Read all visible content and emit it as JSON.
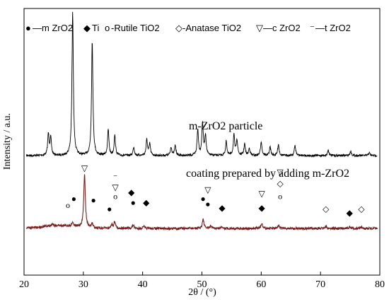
{
  "chart_data": {
    "type": "line",
    "xlabel": "2θ / (°)",
    "ylabel": "Intensity / a.u.",
    "xlim": [
      20,
      80
    ],
    "x_ticks": [
      20,
      30,
      40,
      50,
      60,
      70,
      80
    ],
    "grid": false,
    "legend": {
      "placement": "top",
      "entries": [
        {
          "marker": "●",
          "text": "—m ZrO2"
        },
        {
          "marker": "◆",
          "text": "Ti"
        },
        {
          "marker": "o",
          "text": "-Rutile TiO2"
        },
        {
          "marker": "◇",
          "text": "-Anatase TiO2"
        },
        {
          "marker": "▽",
          "text": "—c ZrO2"
        },
        {
          "marker": "⁻",
          "text": "—t ZrO2"
        }
      ]
    },
    "series": [
      {
        "name": "m-ZrO2 particle",
        "color": "#000000",
        "baseline": 0.0,
        "peaks": [
          {
            "x": 24.1,
            "y": 15
          },
          {
            "x": 24.5,
            "y": 12
          },
          {
            "x": 28.2,
            "y": 100
          },
          {
            "x": 31.5,
            "y": 80
          },
          {
            "x": 34.2,
            "y": 18
          },
          {
            "x": 35.3,
            "y": 14
          },
          {
            "x": 38.5,
            "y": 6
          },
          {
            "x": 40.7,
            "y": 11
          },
          {
            "x": 41.2,
            "y": 8
          },
          {
            "x": 44.8,
            "y": 6
          },
          {
            "x": 45.5,
            "y": 7
          },
          {
            "x": 49.3,
            "y": 18
          },
          {
            "x": 50.1,
            "y": 23
          },
          {
            "x": 50.6,
            "y": 14
          },
          {
            "x": 54.1,
            "y": 10
          },
          {
            "x": 55.4,
            "y": 14
          },
          {
            "x": 55.9,
            "y": 11
          },
          {
            "x": 57.2,
            "y": 8
          },
          {
            "x": 58.0,
            "y": 5
          },
          {
            "x": 60.0,
            "y": 10
          },
          {
            "x": 61.5,
            "y": 6
          },
          {
            "x": 62.9,
            "y": 8
          },
          {
            "x": 65.7,
            "y": 7
          },
          {
            "x": 71.3,
            "y": 4
          },
          {
            "x": 75.1,
            "y": 3
          },
          {
            "x": 78.2,
            "y": 2
          }
        ]
      },
      {
        "name": "coating prepared by adding m-ZrO2",
        "color": "#7a1f1f",
        "baseline": 0.0,
        "peaks": [
          {
            "x": 24.8,
            "y": 1.5
          },
          {
            "x": 28.2,
            "y": 3
          },
          {
            "x": 30.2,
            "y": 40
          },
          {
            "x": 31.5,
            "y": 3
          },
          {
            "x": 34.8,
            "y": 3
          },
          {
            "x": 35.3,
            "y": 5
          },
          {
            "x": 38.4,
            "y": 2.5
          },
          {
            "x": 40.2,
            "y": 1.5
          },
          {
            "x": 50.2,
            "y": 7
          },
          {
            "x": 51.5,
            "y": 2
          },
          {
            "x": 53.4,
            "y": 1.5
          },
          {
            "x": 60.1,
            "y": 3.5
          },
          {
            "x": 63.0,
            "y": 2
          },
          {
            "x": 70.9,
            "y": 1.5
          },
          {
            "x": 74.9,
            "y": 1
          },
          {
            "x": 77.0,
            "y": 1
          }
        ]
      }
    ],
    "annotations": [
      {
        "marker": "▽",
        "x": 30.2,
        "level": 9.0
      },
      {
        "marker": "⁻",
        "x": 35.4,
        "level": 7.6
      },
      {
        "marker": "▽",
        "x": 35.4,
        "level": 6.0
      },
      {
        "marker": "o",
        "x": 35.4,
        "level": 4.6
      },
      {
        "marker": "◆",
        "x": 38.1,
        "level": 5.2
      },
      {
        "marker": "●",
        "x": 38.4,
        "level": 3.6
      },
      {
        "marker": "◆",
        "x": 40.6,
        "level": 3.6
      },
      {
        "marker": "●",
        "x": 28.4,
        "level": 4.2
      },
      {
        "marker": "o",
        "x": 27.4,
        "level": 3.2
      },
      {
        "marker": "●",
        "x": 31.7,
        "level": 4.0
      },
      {
        "marker": "●",
        "x": 34.4,
        "level": 2.6
      },
      {
        "marker": "▽",
        "x": 51.0,
        "level": 5.6
      },
      {
        "marker": "●",
        "x": 50.2,
        "level": 4.2
      },
      {
        "marker": "●",
        "x": 51.0,
        "level": 3.4
      },
      {
        "marker": "◆",
        "x": 53.4,
        "level": 2.8
      },
      {
        "marker": "▽",
        "x": 60.1,
        "level": 5.0
      },
      {
        "marker": "◆",
        "x": 60.1,
        "level": 2.8
      },
      {
        "marker": "▽",
        "x": 63.2,
        "level": 8.4
      },
      {
        "marker": "◇",
        "x": 63.2,
        "level": 6.6
      },
      {
        "marker": "o",
        "x": 63.2,
        "level": 4.6
      },
      {
        "marker": "◇",
        "x": 70.9,
        "level": 2.6
      },
      {
        "marker": "◆",
        "x": 74.9,
        "level": 2.0
      },
      {
        "marker": "◇",
        "x": 76.9,
        "level": 2.6
      }
    ]
  }
}
